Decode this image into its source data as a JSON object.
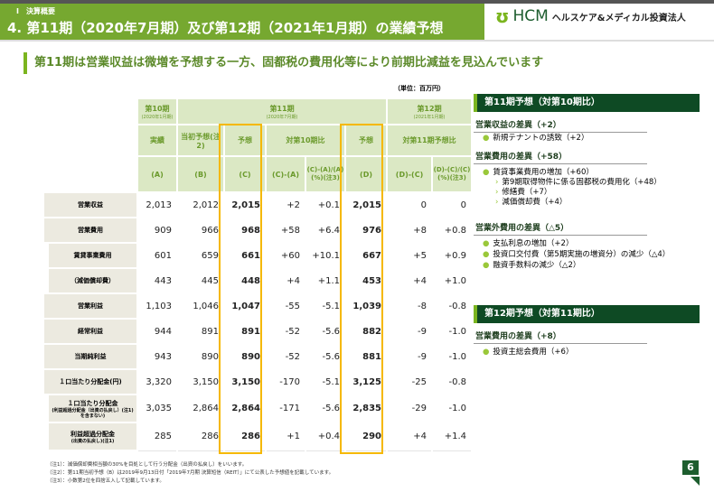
{
  "header": {
    "section": "Ⅰ　決算概要",
    "title": "4. 第11期（2020年7月期）及び第12期（2021年1月期）の業績予想",
    "logo_text": "HCM",
    "company": "ヘルスケア&メディカル投資法人"
  },
  "lead": "第11期は営業収益は微増を予想する一方、固都税の費用化等により前期比減益を見込んでいます",
  "unit": "（単位：百万円）",
  "table": {
    "period_headers": [
      {
        "label": "第10期",
        "sub": "(2020年1月期)"
      },
      {
        "label": "第11期",
        "sub": "(2020年7月期)"
      },
      {
        "label": "第12期",
        "sub": "(2021年1月期)"
      }
    ],
    "col_headers": [
      "実績",
      "当初予想(注2)",
      "予想",
      "対第10期比",
      "予想",
      "対第11期予想比"
    ],
    "col_codes": [
      "(A)",
      "(B)",
      "(C)",
      "(C)-(A)",
      "(C)-(A)/(A)(%)(注3)",
      "(D)",
      "(D)-(C)",
      "(D)-(C)/(C)(%)(注3)"
    ],
    "rows": [
      {
        "label": "営業収益",
        "values": [
          "2,013",
          "2,012",
          "2,015",
          "+2",
          "+0.1",
          "2,015",
          "0",
          "0"
        ]
      },
      {
        "label": "営業費用",
        "values": [
          "909",
          "966",
          "968",
          "+58",
          "+6.4",
          "976",
          "+8",
          "+0.8"
        ]
      },
      {
        "label": "賃貸事業費用",
        "values": [
          "601",
          "659",
          "661",
          "+60",
          "+10.1",
          "667",
          "+5",
          "+0.9"
        ]
      },
      {
        "label": "（減価償却費）",
        "values": [
          "443",
          "445",
          "448",
          "+4",
          "+1.1",
          "453",
          "+4",
          "+1.0"
        ]
      },
      {
        "label": "営業利益",
        "values": [
          "1,103",
          "1,046",
          "1,047",
          "-55",
          "-5.1",
          "1,039",
          "-8",
          "-0.8"
        ]
      },
      {
        "label": "経常利益",
        "values": [
          "944",
          "891",
          "891",
          "-52",
          "-5.6",
          "882",
          "-9",
          "-1.0"
        ]
      },
      {
        "label": "当期純利益",
        "values": [
          "943",
          "890",
          "890",
          "-52",
          "-5.6",
          "881",
          "-9",
          "-1.0"
        ]
      },
      {
        "label": "１口当たり分配金(円)",
        "values": [
          "3,320",
          "3,150",
          "3,150",
          "-170",
          "-5.1",
          "3,125",
          "-25",
          "-0.8"
        ]
      },
      {
        "label": "１口当たり分配金",
        "note": "(利益超過分配金（出資の払戻し）(注1) を含まない)",
        "values": [
          "3,035",
          "2,864",
          "2,864",
          "-171",
          "-5.6",
          "2,835",
          "-29",
          "-1.0"
        ]
      },
      {
        "label": "利益超過分配金",
        "note": "(出資の払戻し)(注1)",
        "values": [
          "285",
          "286",
          "286",
          "+1",
          "+0.4",
          "290",
          "+4",
          "+1.4"
        ]
      }
    ]
  },
  "right": {
    "p11_title": "第11期予想（対第10期比）",
    "g1": {
      "head": "営業収益の差異（+2）",
      "items": [
        "新規テナントの誘致（+2）"
      ]
    },
    "g2": {
      "head": "営業費用の差異（+58）",
      "item": "賃貸事業費用の増加（+60）",
      "subs": [
        "第9期取得物件に係る固都税の費用化（+48）",
        "修繕費（+7）",
        "減価償却費（+4）"
      ]
    },
    "g3": {
      "head": "営業外費用の差異（△5）",
      "items": [
        "支払利息の増加（+2）",
        "投資口交付費（第5期実施の増資分）の減少（△4）",
        "融資手数料の減少（△2）"
      ]
    },
    "p12_title": "第12期予想（対第11期比）",
    "g4": {
      "head": "営業費用の差異（+8）",
      "items": [
        "投資主総会費用（+6）"
      ]
    }
  },
  "notes": [
    "（注1）：減価償却費相当額の30%を目処として行う分配金（出資の払戻し）をいいます。",
    "（注2）：第11期当初予想（B）は2019年9月13日付「2019年7月期 決算短信（REIT）」にて公表した予想値を記載しています。",
    "（注3）：小数第2位を四捨五入して記載しています。"
  ],
  "page": "6",
  "colors": {
    "green": "#76a830",
    "dark_green": "#0e4a24",
    "highlight": "#f5b800"
  }
}
